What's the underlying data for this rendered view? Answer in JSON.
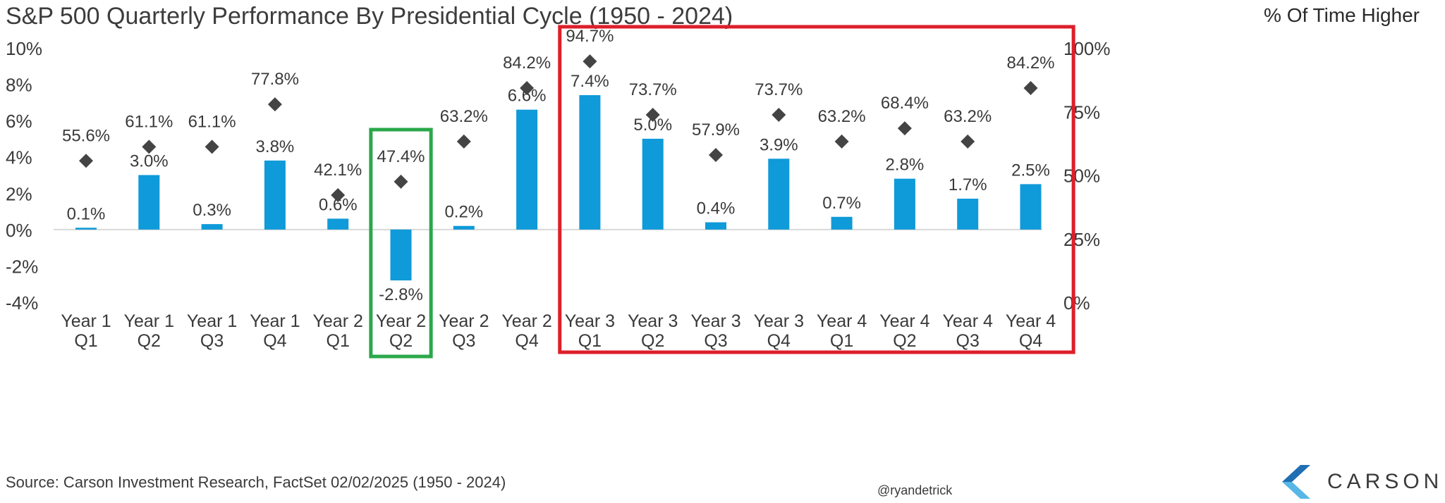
{
  "title": "S&P 500 Quarterly Performance By Presidential Cycle (1950 - 2024)",
  "right_axis_title": "% Of Time Higher",
  "source": "Source: Carson Investment Research, FactSet 02/02/2025 (1950 - 2024)",
  "handle": "@ryandetrick",
  "logo_text": "CARSON",
  "colors": {
    "bar": "#0f9ad9",
    "marker": "#444444",
    "green_box": "#2aa84a",
    "red_box": "#dd1f2a",
    "text": "#3a3a3a"
  },
  "chart_data": {
    "type": "bar",
    "categories": [
      [
        "Year 1",
        "Q1"
      ],
      [
        "Year 1",
        "Q2"
      ],
      [
        "Year 1",
        "Q3"
      ],
      [
        "Year 1",
        "Q4"
      ],
      [
        "Year 2",
        "Q1"
      ],
      [
        "Year 2",
        "Q2"
      ],
      [
        "Year 2",
        "Q3"
      ],
      [
        "Year 2",
        "Q4"
      ],
      [
        "Year 3",
        "Q1"
      ],
      [
        "Year 3",
        "Q2"
      ],
      [
        "Year 3",
        "Q3"
      ],
      [
        "Year 3",
        "Q4"
      ],
      [
        "Year 4",
        "Q1"
      ],
      [
        "Year 4",
        "Q2"
      ],
      [
        "Year 4",
        "Q3"
      ],
      [
        "Year 4",
        "Q4"
      ]
    ],
    "series": [
      {
        "axis": "left",
        "values": [
          0.1,
          3.0,
          0.3,
          3.8,
          0.6,
          -2.8,
          0.2,
          6.6,
          7.4,
          5.0,
          0.4,
          3.9,
          0.7,
          2.8,
          1.7,
          2.5
        ],
        "labels": [
          "0.1%",
          "3.0%",
          "0.3%",
          "3.8%",
          "0.6%",
          "-2.8%",
          "0.2%",
          "6.6%",
          "7.4%",
          "5.0%",
          "0.4%",
          "3.9%",
          "0.7%",
          "2.8%",
          "1.7%",
          "2.5%"
        ]
      },
      {
        "axis": "right",
        "marker": "diamond",
        "values": [
          55.6,
          61.1,
          61.1,
          77.8,
          42.1,
          47.4,
          63.2,
          84.2,
          94.7,
          73.7,
          57.9,
          73.7,
          63.2,
          68.4,
          63.2,
          84.2
        ],
        "labels": [
          "55.6%",
          "61.1%",
          "61.1%",
          "77.8%",
          "42.1%",
          "47.4%",
          "63.2%",
          "84.2%",
          "94.7%",
          "73.7%",
          "57.9%",
          "73.7%",
          "63.2%",
          "68.4%",
          "63.2%",
          "84.2%"
        ]
      }
    ],
    "left_axis": {
      "ylim": [
        -4,
        10
      ],
      "ticks": [
        10,
        8,
        6,
        4,
        2,
        0,
        -2,
        -4
      ],
      "tick_labels": [
        "10%",
        "8%",
        "6%",
        "4%",
        "2%",
        "0%",
        "-2%",
        "-4%"
      ]
    },
    "right_axis": {
      "ylim": [
        0,
        100
      ],
      "ticks": [
        100,
        75,
        50,
        25,
        0
      ],
      "tick_labels": [
        "100%",
        "75%",
        "50%",
        "25%",
        "0%"
      ]
    },
    "highlights": [
      {
        "color": "green",
        "categories": [
          5
        ]
      },
      {
        "color": "red",
        "categories": [
          8,
          9,
          10,
          11,
          12,
          13,
          14,
          15
        ]
      }
    ],
    "grid": false,
    "legend": "none"
  }
}
